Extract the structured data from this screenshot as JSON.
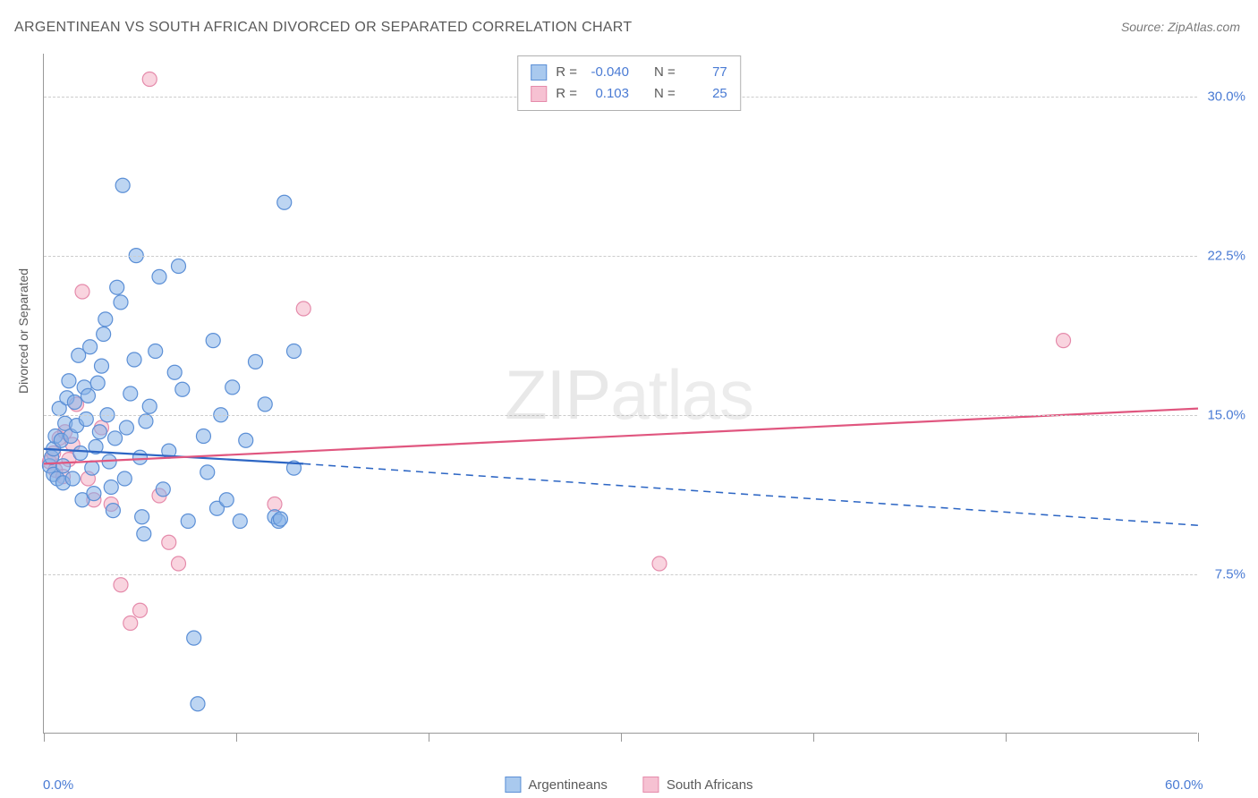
{
  "chart": {
    "type": "scatter",
    "title": "ARGENTINEAN VS SOUTH AFRICAN DIVORCED OR SEPARATED CORRELATION CHART",
    "source": "Source: ZipAtlas.com",
    "y_axis_label": "Divorced or Separated",
    "watermark": {
      "bold": "ZIP",
      "thin": "atlas"
    },
    "background_color": "#ffffff",
    "grid_color": "#cccccc",
    "axis_color": "#999999",
    "label_color": "#4a7bd4",
    "text_color": "#5a5a5a",
    "title_fontsize": 16,
    "label_fontsize": 15,
    "xlim": [
      0,
      60
    ],
    "ylim": [
      0,
      32
    ],
    "y_ticks": [
      7.5,
      15.0,
      22.5,
      30.0
    ],
    "y_tick_labels": [
      "7.5%",
      "15.0%",
      "22.5%",
      "30.0%"
    ],
    "x_tick_positions": [
      0,
      10,
      20,
      30,
      40,
      50,
      60
    ],
    "x_tick_labels_shown": {
      "0": "0.0%",
      "60": "60.0%"
    },
    "marker_radius": 8,
    "marker_stroke_width": 1.2,
    "trend_line_width": 2.2,
    "series": [
      {
        "name": "Argentineans",
        "fill_color": "rgba(135,178,232,0.55)",
        "stroke_color": "#5b8fd6",
        "swatch_fill": "#a9c9ee",
        "swatch_stroke": "#5b8fd6",
        "r_value": "-0.040",
        "n_value": "77",
        "trend": {
          "color": "#2d66c4",
          "solid_from_x": 0,
          "solid_from_y": 13.4,
          "solid_to_x": 13.5,
          "solid_to_y": 12.7,
          "dash_to_x": 60,
          "dash_to_y": 9.8,
          "dash_pattern": "8,6"
        },
        "points": [
          [
            0.3,
            12.6
          ],
          [
            0.4,
            13.0
          ],
          [
            0.5,
            12.2
          ],
          [
            0.5,
            13.4
          ],
          [
            0.6,
            14.0
          ],
          [
            0.7,
            12.0
          ],
          [
            0.8,
            15.3
          ],
          [
            0.9,
            13.8
          ],
          [
            1.0,
            11.8
          ],
          [
            1.0,
            12.6
          ],
          [
            1.1,
            14.6
          ],
          [
            1.2,
            15.8
          ],
          [
            1.3,
            16.6
          ],
          [
            1.4,
            14.0
          ],
          [
            1.5,
            12.0
          ],
          [
            1.6,
            15.6
          ],
          [
            1.7,
            14.5
          ],
          [
            1.8,
            17.8
          ],
          [
            1.9,
            13.2
          ],
          [
            2.0,
            11.0
          ],
          [
            2.1,
            16.3
          ],
          [
            2.2,
            14.8
          ],
          [
            2.3,
            15.9
          ],
          [
            2.4,
            18.2
          ],
          [
            2.5,
            12.5
          ],
          [
            2.6,
            11.3
          ],
          [
            2.7,
            13.5
          ],
          [
            2.8,
            16.5
          ],
          [
            2.9,
            14.2
          ],
          [
            3.0,
            17.3
          ],
          [
            3.1,
            18.8
          ],
          [
            3.2,
            19.5
          ],
          [
            3.3,
            15.0
          ],
          [
            3.4,
            12.8
          ],
          [
            3.5,
            11.6
          ],
          [
            3.6,
            10.5
          ],
          [
            3.7,
            13.9
          ],
          [
            3.8,
            21.0
          ],
          [
            4.0,
            20.3
          ],
          [
            4.1,
            25.8
          ],
          [
            4.2,
            12.0
          ],
          [
            4.3,
            14.4
          ],
          [
            4.5,
            16.0
          ],
          [
            4.7,
            17.6
          ],
          [
            4.8,
            22.5
          ],
          [
            5.0,
            13.0
          ],
          [
            5.1,
            10.2
          ],
          [
            5.2,
            9.4
          ],
          [
            5.3,
            14.7
          ],
          [
            5.5,
            15.4
          ],
          [
            5.8,
            18.0
          ],
          [
            6.0,
            21.5
          ],
          [
            6.2,
            11.5
          ],
          [
            6.5,
            13.3
          ],
          [
            6.8,
            17.0
          ],
          [
            7.0,
            22.0
          ],
          [
            7.2,
            16.2
          ],
          [
            7.5,
            10.0
          ],
          [
            7.8,
            4.5
          ],
          [
            8.0,
            1.4
          ],
          [
            8.3,
            14.0
          ],
          [
            8.5,
            12.3
          ],
          [
            8.8,
            18.5
          ],
          [
            9.0,
            10.6
          ],
          [
            9.2,
            15.0
          ],
          [
            9.5,
            11.0
          ],
          [
            9.8,
            16.3
          ],
          [
            10.2,
            10.0
          ],
          [
            10.5,
            13.8
          ],
          [
            11.0,
            17.5
          ],
          [
            11.5,
            15.5
          ],
          [
            12.0,
            10.2
          ],
          [
            12.2,
            10.0
          ],
          [
            12.3,
            10.1
          ],
          [
            12.5,
            25.0
          ],
          [
            13.0,
            18.0
          ],
          [
            13.0,
            12.5
          ]
        ]
      },
      {
        "name": "South Africans",
        "fill_color": "rgba(244,170,192,0.5)",
        "stroke_color": "#e58bab",
        "swatch_fill": "#f6c1d2",
        "swatch_stroke": "#e58bab",
        "r_value": "0.103",
        "n_value": "25",
        "trend": {
          "color": "#e0567f",
          "solid_from_x": 0,
          "solid_from_y": 12.7,
          "solid_to_x": 60,
          "solid_to_y": 15.3,
          "dash_to_x": null,
          "dash_to_y": null,
          "dash_pattern": null
        },
        "points": [
          [
            0.3,
            12.8
          ],
          [
            0.5,
            13.2
          ],
          [
            0.6,
            12.4
          ],
          [
            0.8,
            13.9
          ],
          [
            1.0,
            12.1
          ],
          [
            1.1,
            14.2
          ],
          [
            1.3,
            12.9
          ],
          [
            1.5,
            13.6
          ],
          [
            1.7,
            15.5
          ],
          [
            2.0,
            20.8
          ],
          [
            2.3,
            12.0
          ],
          [
            2.6,
            11.0
          ],
          [
            3.0,
            14.4
          ],
          [
            3.5,
            10.8
          ],
          [
            4.0,
            7.0
          ],
          [
            4.5,
            5.2
          ],
          [
            5.0,
            5.8
          ],
          [
            5.5,
            30.8
          ],
          [
            6.0,
            11.2
          ],
          [
            6.5,
            9.0
          ],
          [
            7.0,
            8.0
          ],
          [
            12.0,
            10.8
          ],
          [
            13.5,
            20.0
          ],
          [
            32.0,
            8.0
          ],
          [
            53.0,
            18.5
          ]
        ]
      }
    ],
    "legend_bottom": [
      {
        "label": "Argentineans",
        "series_index": 0
      },
      {
        "label": "South Africans",
        "series_index": 1
      }
    ],
    "stats_prefix_r": "R =",
    "stats_prefix_n": "N ="
  }
}
